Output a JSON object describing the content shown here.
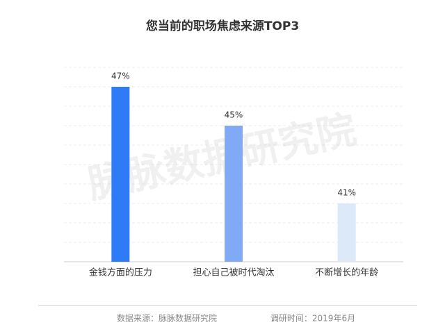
{
  "chart_data": {
    "type": "bar",
    "title": "您当前的职场焦虑来源TOP3",
    "categories": [
      "金钱方面的压力",
      "担心自己被时代淘汰",
      "不断增长的年龄"
    ],
    "values": [
      47,
      45,
      41
    ],
    "value_labels": [
      "47%",
      "45%",
      "41%"
    ],
    "colors": [
      "#2f7bf5",
      "#80aaf6",
      "#dce9f8"
    ],
    "ylim": [
      38,
      48
    ],
    "grid": true,
    "watermark": "脉脉数据研究院",
    "source": "数据来源：脉脉数据研究院",
    "survey_time": "调研时间：2019年6月"
  }
}
